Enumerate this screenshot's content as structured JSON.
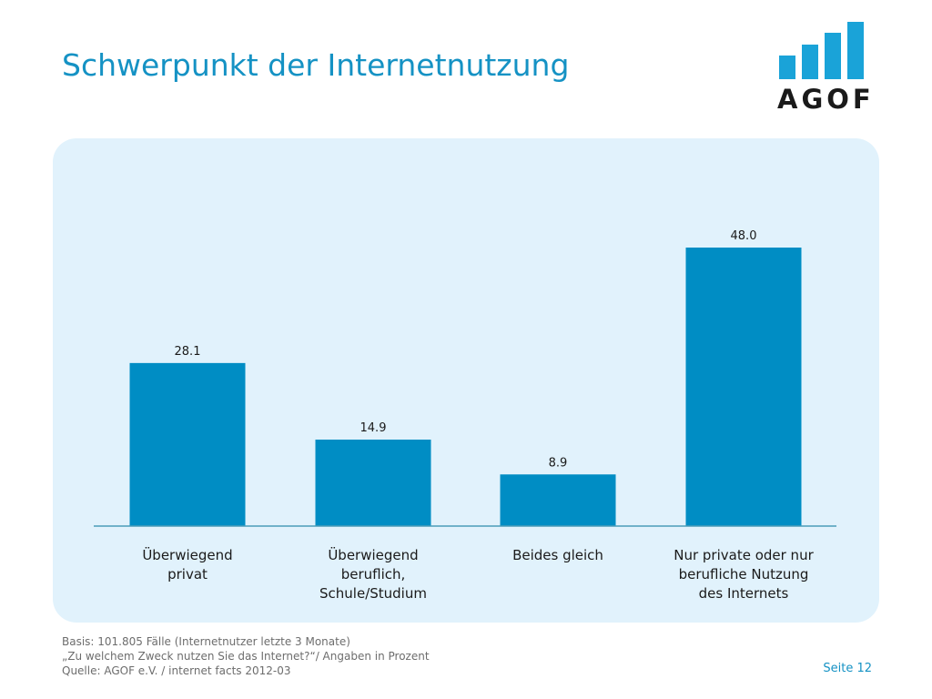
{
  "title": "Schwerpunkt der Internetnutzung",
  "logo": {
    "text": "AGOF"
  },
  "colors": {
    "bar": "#008dc4",
    "axis": "#4a9cb8",
    "title": "#1592c4",
    "panel": "#e1f2fc"
  },
  "chart_data": {
    "type": "bar",
    "categories": [
      [
        "Überwiegend",
        "privat"
      ],
      [
        "Überwiegend",
        "beruflich,",
        "Schule/Studium"
      ],
      [
        "Beides gleich"
      ],
      [
        "Nur private oder nur",
        "berufliche Nutzung",
        "des Internets"
      ]
    ],
    "values": [
      28.1,
      14.9,
      8.9,
      48.0
    ],
    "value_labels": [
      "28.1",
      "14.9",
      "8.9",
      "48.0"
    ],
    "ylim": [
      0,
      48
    ],
    "grid": false,
    "legend": "none"
  },
  "footer": {
    "lines": [
      "Basis: 101.805 Fälle (Internetnutzer letzte 3 Monate)",
      "„Zu welchem Zweck nutzen Sie das Internet?“/ Angaben in Prozent",
      "Quelle: AGOF e.V. / internet facts 2012-03"
    ],
    "page": "Seite 12"
  }
}
